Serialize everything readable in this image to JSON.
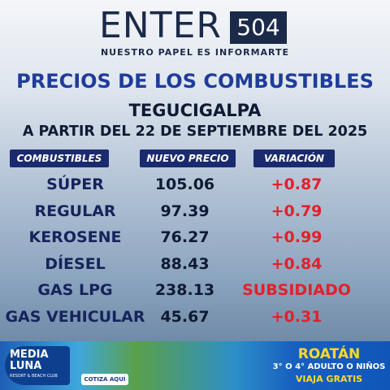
{
  "header": {
    "brand": "ENTER",
    "brand_number": "504",
    "slogan": "NUESTRO PAPEL ES INFORMARTE"
  },
  "title": "PRECIOS DE LOS COMBUSTIBLES",
  "city": "TEGUCIGALPA",
  "date_line": "A PARTIR DEL 22 DE SEPTIEMBRE DEL 2025",
  "table": {
    "columns": [
      "COMBUSTIBLES",
      "NUEVO PRECIO",
      "VARIACIÓN"
    ],
    "rows": [
      [
        "SÚPER",
        "105.06",
        "+0.87"
      ],
      [
        "REGULAR",
        "97.39",
        "+0.79"
      ],
      [
        "KEROSENE",
        "76.27",
        "+0.99"
      ],
      [
        "DÍESEL",
        "88.43",
        "+0.84"
      ],
      [
        "GAS LPG",
        "238.13",
        "SUBSIDIADO"
      ],
      [
        "GAS VEHICULAR",
        "45.67",
        "+0.31"
      ]
    ]
  },
  "ad": {
    "brand": "MEDIA LUNA",
    "tagline": "RESORT & BEACH CLUB",
    "button": "COTIZA AQUÍ",
    "destination": "ROATÁN",
    "offer": "3° O 4° ADULTO O NIÑOS",
    "offer_highlight": "VIAJA GRATIS"
  }
}
